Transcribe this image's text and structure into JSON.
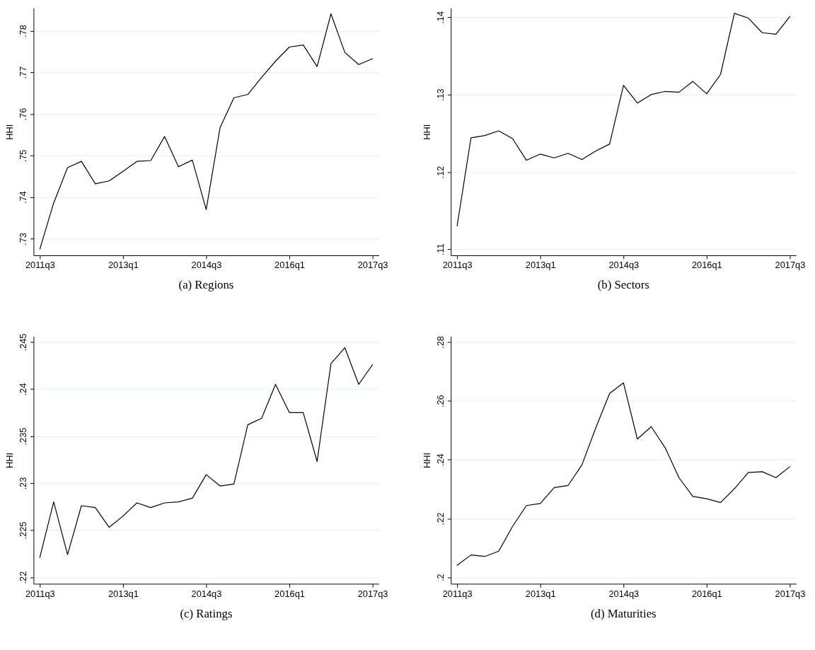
{
  "chart_data": [
    {
      "type": "line",
      "title": "(a) Regions",
      "ylabel": "HHI",
      "color": "#000000",
      "grid": "y",
      "categories": [
        "2011q3",
        null,
        null,
        null,
        null,
        null,
        "2013q1",
        null,
        null,
        null,
        null,
        null,
        "2014q3",
        null,
        null,
        null,
        null,
        null,
        "2016q1",
        null,
        null,
        null,
        null,
        null,
        "2017q3"
      ],
      "values": [
        0.7275,
        0.7386,
        0.7471,
        0.7486,
        0.7432,
        0.7439,
        0.7462,
        0.7486,
        0.7488,
        0.7546,
        0.7473,
        0.7489,
        0.737,
        0.7567,
        0.7639,
        0.7647,
        0.7688,
        0.7727,
        0.7761,
        0.7766,
        0.7714,
        0.7841,
        0.7748,
        0.7719,
        0.7733
      ],
      "ylim": [
        0.726,
        0.7855
      ],
      "yticks": [
        {
          "value": 0.73,
          "label": ".73"
        },
        {
          "value": 0.74,
          "label": ".74"
        },
        {
          "value": 0.75,
          "label": ".75"
        },
        {
          "value": 0.76,
          "label": ".76"
        },
        {
          "value": 0.77,
          "label": ".77"
        },
        {
          "value": 0.78,
          "label": ".78"
        }
      ]
    },
    {
      "type": "line",
      "title": "(b) Sectors",
      "ylabel": "HHI",
      "color": "#000000",
      "grid": "y",
      "categories": [
        "2011q3",
        null,
        null,
        null,
        null,
        null,
        "2013q1",
        null,
        null,
        null,
        null,
        null,
        "2014q3",
        null,
        null,
        null,
        null,
        null,
        "2016q1",
        null,
        null,
        null,
        null,
        null,
        "2017q3"
      ],
      "values": [
        0.113,
        0.1244,
        0.1247,
        0.1253,
        0.1243,
        0.1215,
        0.1223,
        0.1218,
        0.1224,
        0.1216,
        0.1227,
        0.1236,
        0.1312,
        0.1289,
        0.13,
        0.1304,
        0.1303,
        0.1317,
        0.1301,
        0.1326,
        0.1405,
        0.1399,
        0.138,
        0.1378,
        0.1401
      ],
      "ylim": [
        0.1092,
        0.1412
      ],
      "yticks": [
        {
          "value": 0.11,
          "label": ".11"
        },
        {
          "value": 0.12,
          "label": ".12"
        },
        {
          "value": 0.13,
          "label": ".13"
        },
        {
          "value": 0.14,
          "label": ".14"
        }
      ]
    },
    {
      "type": "line",
      "title": "(c) Ratings",
      "ylabel": "HHI",
      "color": "#000000",
      "grid": "y",
      "categories": [
        "2011q3",
        null,
        null,
        null,
        null,
        null,
        "2013q1",
        null,
        null,
        null,
        null,
        null,
        "2014q3",
        null,
        null,
        null,
        null,
        null,
        "2016q1",
        null,
        null,
        null,
        null,
        null,
        "2017q3"
      ],
      "values": [
        0.2221,
        0.228,
        0.2224,
        0.2276,
        0.2274,
        0.2253,
        0.2265,
        0.2279,
        0.2274,
        0.2279,
        0.228,
        0.2284,
        0.2309,
        0.2297,
        0.2299,
        0.2362,
        0.2369,
        0.2405,
        0.2375,
        0.2375,
        0.2323,
        0.2427,
        0.2444,
        0.2405,
        0.2426
      ],
      "ylim": [
        0.2193,
        0.2456
      ],
      "yticks": [
        {
          "value": 0.22,
          "label": ".22"
        },
        {
          "value": 0.225,
          "label": ".225"
        },
        {
          "value": 0.23,
          "label": ".23"
        },
        {
          "value": 0.235,
          "label": ".235"
        },
        {
          "value": 0.24,
          "label": ".24"
        },
        {
          "value": 0.245,
          "label": ".245"
        }
      ]
    },
    {
      "type": "line",
      "title": "(d) Maturities",
      "ylabel": "HHI",
      "color": "#000000",
      "grid": "y",
      "categories": [
        "2011q3",
        null,
        null,
        null,
        null,
        null,
        "2013q1",
        null,
        null,
        null,
        null,
        null,
        "2014q3",
        null,
        null,
        null,
        null,
        null,
        "2016q1",
        null,
        null,
        null,
        null,
        null,
        "2017q3"
      ],
      "values": [
        0.2041,
        0.2076,
        0.2071,
        0.2089,
        0.2173,
        0.2244,
        0.2251,
        0.2305,
        0.2312,
        0.2382,
        0.2508,
        0.2625,
        0.2661,
        0.247,
        0.2512,
        0.2441,
        0.2339,
        0.2275,
        0.2267,
        0.2254,
        0.2301,
        0.2356,
        0.2359,
        0.2339,
        0.2376
      ],
      "ylim": [
        0.1978,
        0.2819
      ],
      "yticks": [
        {
          "value": 0.2,
          "label": ".2"
        },
        {
          "value": 0.22,
          "label": ".22"
        },
        {
          "value": 0.24,
          "label": ".24"
        },
        {
          "value": 0.26,
          "label": ".26"
        },
        {
          "value": 0.28,
          "label": ".28"
        }
      ]
    }
  ]
}
